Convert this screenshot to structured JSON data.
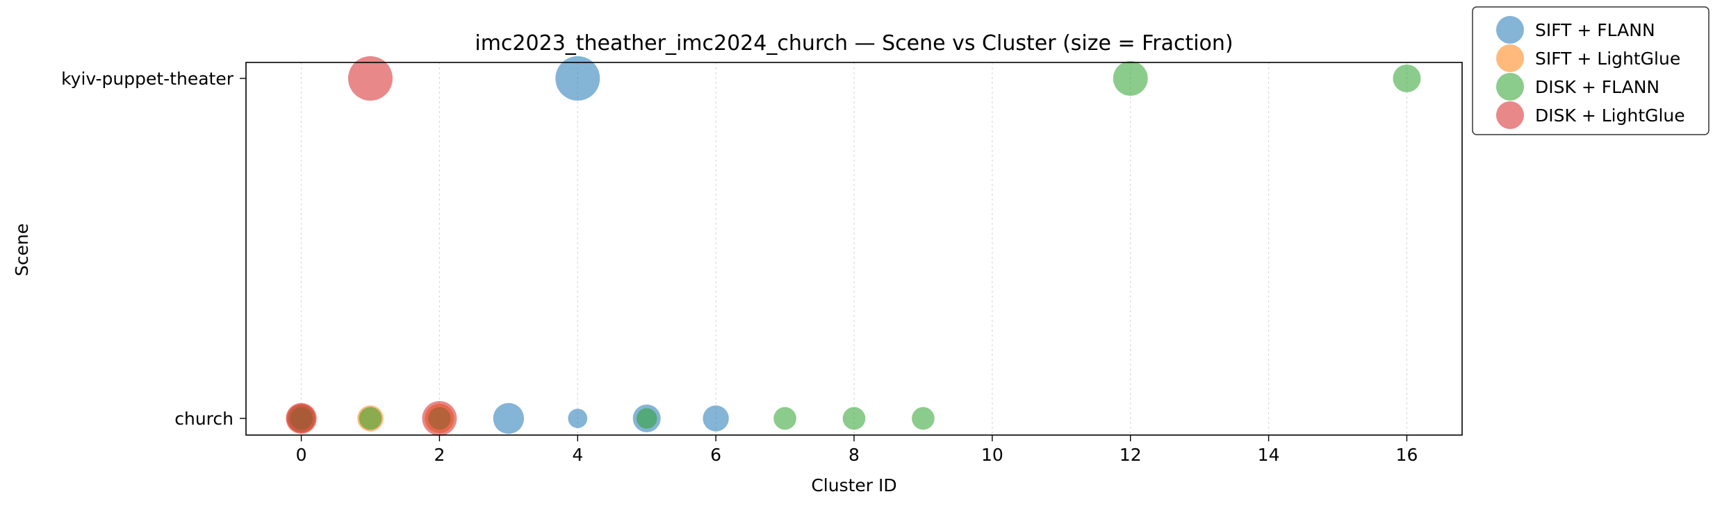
{
  "chart_data": {
    "type": "scatter",
    "title": "imc2023_theather_imc2024_church — Scene vs Cluster (size = Fraction)",
    "xlabel": "Cluster ID",
    "ylabel": "Scene",
    "xlim": [
      -0.8,
      16.8
    ],
    "xticks": [
      0,
      2,
      4,
      6,
      8,
      10,
      12,
      14,
      16
    ],
    "yticks": [
      "church",
      "kyiv-puppet-theater"
    ],
    "grid": "vertical dotted",
    "legend_position": "outside-top-right",
    "series": [
      {
        "name": "SIFT + FLANN",
        "color": "#1f77b4",
        "points": [
          {
            "x": 4,
            "y": "kyiv-puppet-theater",
            "fraction": 1.0
          },
          {
            "x": 0,
            "y": "church",
            "fraction": 0.25
          },
          {
            "x": 3,
            "y": "church",
            "fraction": 0.35
          },
          {
            "x": 4,
            "y": "church",
            "fraction": 0.06
          },
          {
            "x": 5,
            "y": "church",
            "fraction": 0.25
          },
          {
            "x": 6,
            "y": "church",
            "fraction": 0.2
          }
        ]
      },
      {
        "name": "SIFT + LightGlue",
        "color": "#ff7f0e",
        "points": [
          {
            "x": 0,
            "y": "church",
            "fraction": 0.3
          },
          {
            "x": 1,
            "y": "church",
            "fraction": 0.2
          },
          {
            "x": 2,
            "y": "church",
            "fraction": 0.3
          }
        ]
      },
      {
        "name": "DISK + FLANN",
        "color": "#2ca02c",
        "points": [
          {
            "x": 12,
            "y": "kyiv-puppet-theater",
            "fraction": 0.5
          },
          {
            "x": 16,
            "y": "kyiv-puppet-theater",
            "fraction": 0.25
          },
          {
            "x": 0,
            "y": "church",
            "fraction": 0.12
          },
          {
            "x": 1,
            "y": "church",
            "fraction": 0.12
          },
          {
            "x": 2,
            "y": "church",
            "fraction": 0.12
          },
          {
            "x": 5,
            "y": "church",
            "fraction": 0.08
          },
          {
            "x": 7,
            "y": "church",
            "fraction": 0.12
          },
          {
            "x": 8,
            "y": "church",
            "fraction": 0.12
          },
          {
            "x": 9,
            "y": "church",
            "fraction": 0.12
          }
        ]
      },
      {
        "name": "DISK + LightGlue",
        "color": "#d62728",
        "points": [
          {
            "x": 1,
            "y": "kyiv-puppet-theater",
            "fraction": 1.0
          },
          {
            "x": 0,
            "y": "church",
            "fraction": 0.35
          },
          {
            "x": 2,
            "y": "church",
            "fraction": 0.5
          }
        ]
      }
    ]
  }
}
